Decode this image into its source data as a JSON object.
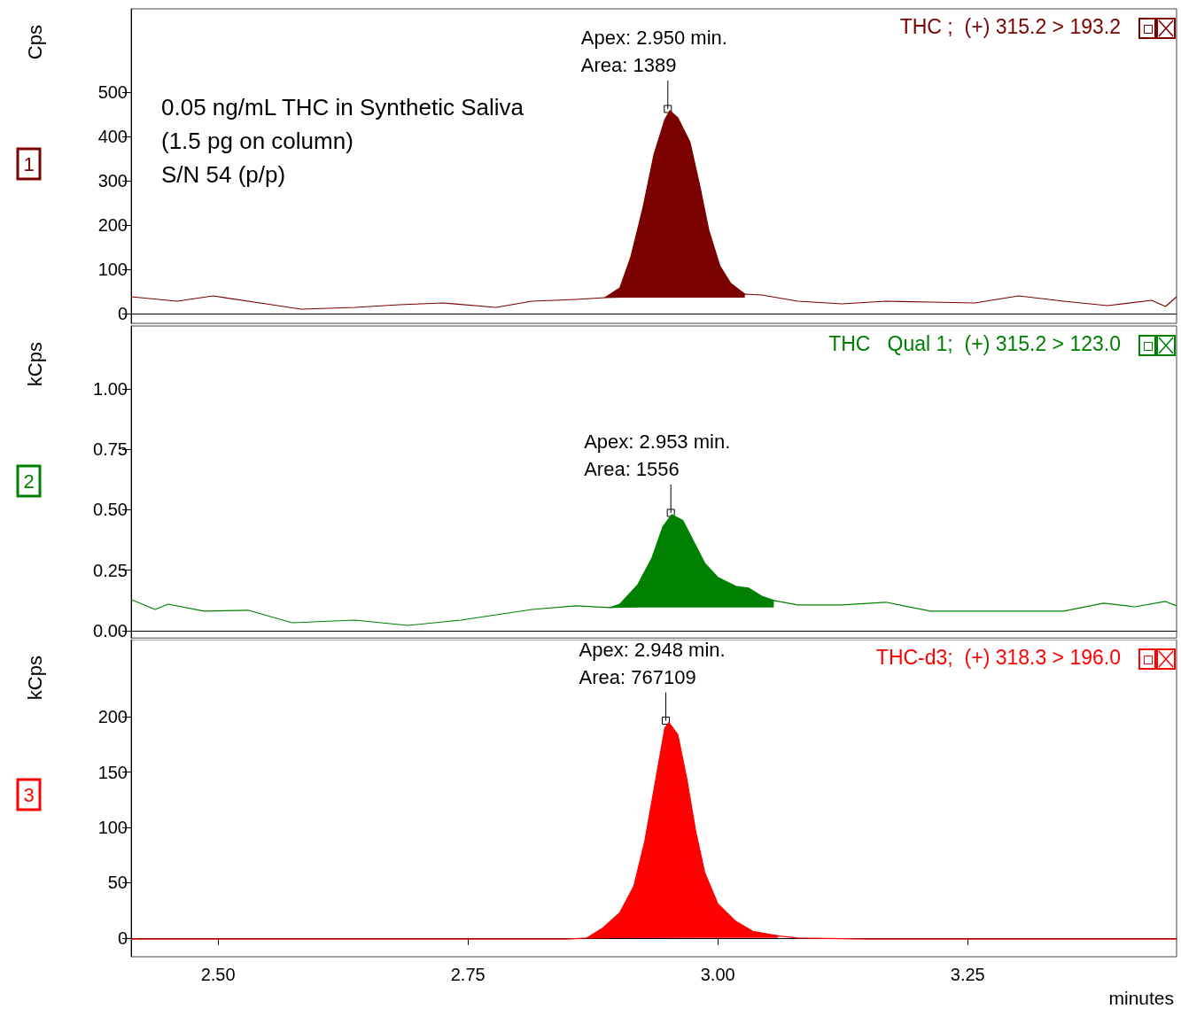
{
  "chart_data": [
    {
      "type": "line",
      "title": "THC ;  (+) 315.2 > 193.2",
      "ylabel": "Cps",
      "xlim": [
        2.413,
        3.459
      ],
      "ylim": [
        -22,
        688
      ],
      "yticks": [
        0,
        100,
        200,
        300,
        400,
        500
      ],
      "tick_labels": "y",
      "annotations": [
        {
          "text": "Apex: 2.950 min.\nArea: 1389",
          "x": 2.95,
          "y": 458
        },
        "1",
        "0.05 ng/mL THC in Synthetic Saliva\n(1.5 pg on column)\nS/N 54 (p/p)"
      ],
      "series": [
        {
          "type": "line",
          "color": "#7b0000",
          "x": [
            2.413,
            2.459,
            2.495,
            2.548,
            2.583,
            2.637,
            2.681,
            2.725,
            2.778,
            2.814,
            2.858,
            2.887,
            3.027,
            3.044,
            3.08,
            3.124,
            3.168,
            3.213,
            3.257,
            3.301,
            3.346,
            3.39,
            3.434,
            3.448,
            3.459
          ],
          "values": [
            38,
            28,
            40,
            22,
            10,
            14,
            20,
            24,
            14,
            28,
            32,
            36,
            44,
            42,
            28,
            22,
            28,
            26,
            24,
            40,
            28,
            18,
            30,
            16,
            38
          ]
        },
        {
          "type": "area",
          "color": "#7b0000",
          "x": [
            2.887,
            2.902,
            2.913,
            2.925,
            2.936,
            2.947,
            2.952,
            2.96,
            2.972,
            2.982,
            2.991,
            3.002,
            3.013,
            3.027
          ],
          "values": [
            36,
            58,
            128,
            238,
            358,
            438,
            458,
            442,
            388,
            288,
            188,
            108,
            68,
            44
          ]
        }
      ]
    },
    {
      "type": "line",
      "title": "THC   Qual 1;  (+) 315.2 > 123.0",
      "ylabel": "kCps",
      "xlim": [
        2.413,
        3.459
      ],
      "ylim": [
        -0.03,
        1.26
      ],
      "yticks": [
        {
          "value": 0,
          "label": "0.00"
        },
        0.25,
        {
          "value": 0.5,
          "label": "0.50"
        },
        0.75,
        {
          "value": 1,
          "label": "1.00"
        }
      ],
      "tick_labels": "y",
      "annotations": [
        {
          "text": "Apex: 2.953 min.\nArea: 1556",
          "x": 2.953,
          "y": 0.48
        },
        "2"
      ],
      "series": [
        {
          "type": "line",
          "color": "#008000",
          "x": [
            2.413,
            2.437,
            2.45,
            2.486,
            2.53,
            2.574,
            2.637,
            2.69,
            2.743,
            2.814,
            2.858,
            2.892,
            3.056,
            3.08,
            3.124,
            3.168,
            3.213,
            3.257,
            3.301,
            3.346,
            3.386,
            3.417,
            3.448,
            3.459
          ],
          "values": [
            0.129,
            0.088,
            0.11,
            0.081,
            0.085,
            0.033,
            0.044,
            0.022,
            0.044,
            0.088,
            0.103,
            0.096,
            0.125,
            0.107,
            0.107,
            0.118,
            0.081,
            0.081,
            0.081,
            0.081,
            0.114,
            0.099,
            0.121,
            0.103
          ]
        },
        {
          "type": "area",
          "color": "#008000",
          "x": [
            2.892,
            2.902,
            2.92,
            2.934,
            2.945,
            2.954,
            2.965,
            2.975,
            2.987,
            3.0,
            3.018,
            3.031,
            3.044,
            3.056
          ],
          "values": [
            0.096,
            0.11,
            0.191,
            0.3,
            0.43,
            0.48,
            0.456,
            0.375,
            0.279,
            0.221,
            0.184,
            0.176,
            0.143,
            0.125
          ]
        }
      ]
    },
    {
      "type": "line",
      "title": "THC-d3;  (+) 318.3 > 196.0",
      "ylabel": "kCps",
      "xlabel": "minutes",
      "xlim": [
        2.413,
        3.459
      ],
      "ylim": [
        -17,
        270
      ],
      "yticks": [
        0,
        50,
        100,
        150,
        200
      ],
      "xticks": [
        {
          "value": 2.5,
          "label": "2.50"
        },
        2.75,
        {
          "value": 3.0,
          "label": "3.00"
        },
        3.25
      ],
      "annotations": [
        {
          "text": "Apex: 2.948 min.\nArea: 767109",
          "x": 2.948,
          "y": 195
        },
        "3"
      ],
      "series": [
        {
          "type": "line",
          "color": "#ff0000",
          "x": [
            2.413,
            2.6,
            2.849,
            2.869,
            3.06,
            3.08,
            3.151,
            3.3,
            3.459
          ],
          "values": [
            -1,
            -1,
            -1,
            0,
            2,
            0,
            -1,
            -1,
            -1
          ]
        },
        {
          "type": "area",
          "color": "#ff0000",
          "x": [
            2.869,
            2.885,
            2.902,
            2.916,
            2.927,
            2.938,
            2.947,
            2.951,
            2.96,
            2.969,
            2.978,
            2.987,
            3.0,
            3.018,
            3.035,
            3.06
          ],
          "values": [
            0,
            9,
            23,
            47,
            88,
            144,
            190,
            195,
            184,
            144,
            96,
            59,
            31,
            15,
            6,
            2
          ]
        }
      ]
    }
  ]
}
